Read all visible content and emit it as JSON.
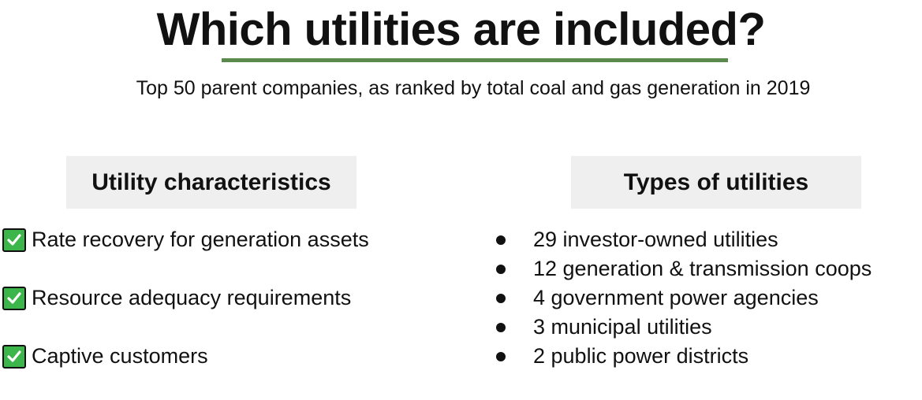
{
  "title": "Which utilities are included?",
  "subtitle": "Top 50 parent companies, as ranked by total coal and gas generation in 2019",
  "accent_color": "#5a8a4c",
  "left": {
    "heading": "Utility characteristics",
    "items": [
      {
        "icon": "checkmark-icon",
        "label": "Rate recovery for generation assets"
      },
      {
        "icon": "checkmark-icon",
        "label": "Resource adequacy requirements"
      },
      {
        "icon": "checkmark-icon",
        "label": "Captive customers"
      }
    ]
  },
  "right": {
    "heading": "Types of utilities",
    "items": [
      {
        "label": "29 investor-owned utilities"
      },
      {
        "label": "12 generation & transmission coops"
      },
      {
        "label": "4 government power agencies"
      },
      {
        "label": "3 municipal utilities"
      },
      {
        "label": "2 public power districts"
      }
    ]
  }
}
